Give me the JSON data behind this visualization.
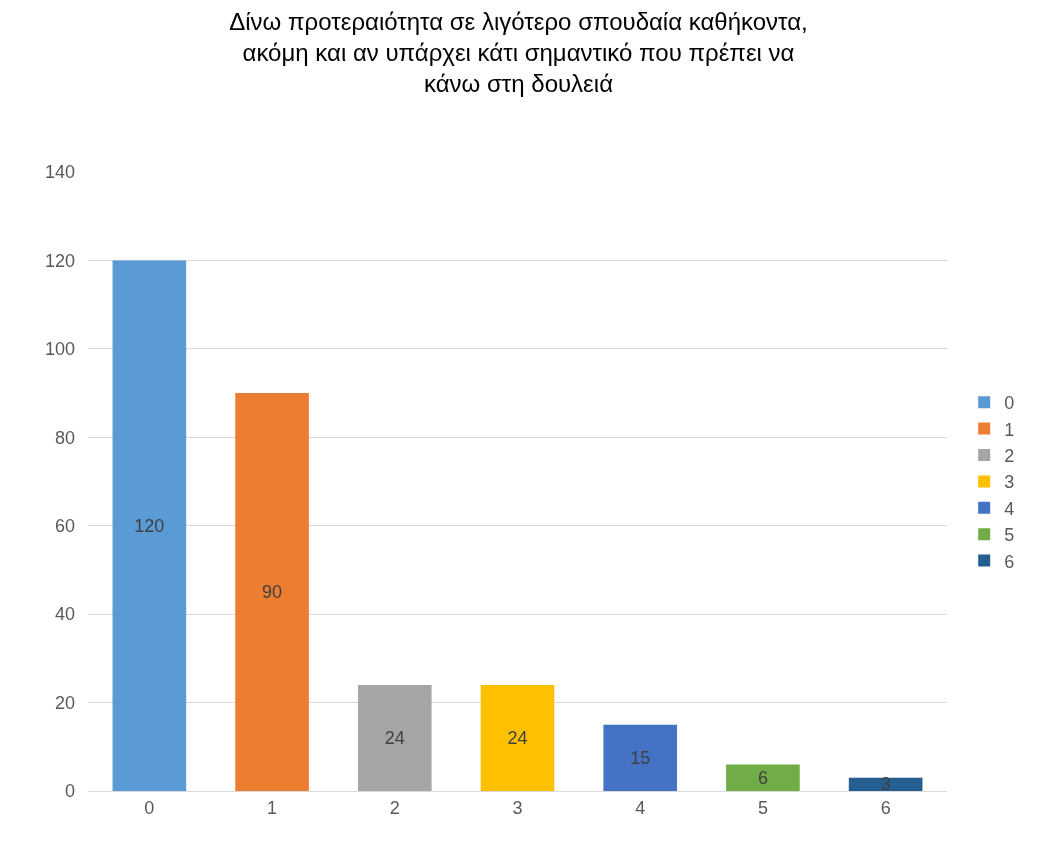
{
  "chart_data": {
    "type": "bar",
    "title": "Δίνω προτεραιότητα σε λιγότερο σπουδαία καθήκοντα, ακόμη και αν υπάρχει κάτι σημαντικό που πρέπει να κάνω στη δουλειά",
    "categories": [
      "0",
      "1",
      "2",
      "3",
      "4",
      "5",
      "6"
    ],
    "series": [
      {
        "name": "0",
        "color": "#5b9bd5",
        "values": [
          120,
          null,
          null,
          null,
          null,
          null,
          null
        ]
      },
      {
        "name": "1",
        "color": "#ed7d31",
        "values": [
          null,
          90,
          null,
          null,
          null,
          null,
          null
        ]
      },
      {
        "name": "2",
        "color": "#a5a5a5",
        "values": [
          null,
          null,
          24,
          null,
          null,
          null,
          null
        ]
      },
      {
        "name": "3",
        "color": "#ffc000",
        "values": [
          null,
          null,
          null,
          24,
          null,
          null,
          null
        ]
      },
      {
        "name": "4",
        "color": "#4472c4",
        "values": [
          null,
          null,
          null,
          null,
          15,
          null,
          null
        ]
      },
      {
        "name": "5",
        "color": "#70ad47",
        "values": [
          null,
          null,
          null,
          null,
          null,
          6,
          null
        ]
      },
      {
        "name": "6",
        "color": "#255e91",
        "values": [
          null,
          null,
          null,
          null,
          null,
          null,
          3
        ]
      }
    ],
    "ylim": [
      0,
      140
    ],
    "yticks": [
      0,
      20,
      40,
      60,
      80,
      100,
      120,
      140
    ],
    "grid": "y",
    "legend": "right",
    "data_labels": true
  }
}
